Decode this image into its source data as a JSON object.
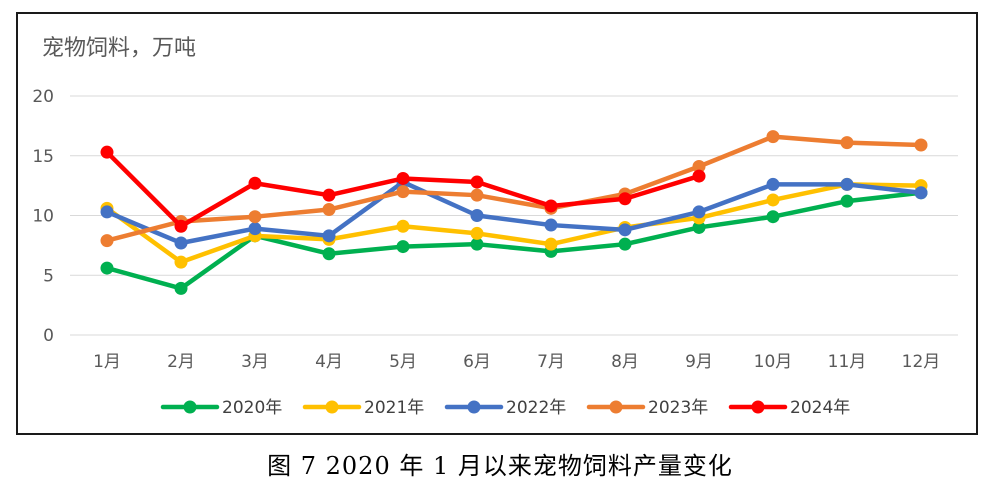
{
  "caption": "图 7 2020 年 1 月以来宠物饲料产量变化",
  "chart_data": {
    "type": "line",
    "unit_label": "宠物饲料，万吨",
    "categories": [
      "1月",
      "2月",
      "3月",
      "4月",
      "5月",
      "6月",
      "7月",
      "8月",
      "9月",
      "10月",
      "11月",
      "12月"
    ],
    "ylim": [
      0,
      20
    ],
    "yticks": [
      0,
      5,
      10,
      15,
      20
    ],
    "grid": true,
    "legend_position": "bottom",
    "series": [
      {
        "name": "2020年",
        "color": "#00b050",
        "values": [
          5.6,
          3.9,
          8.3,
          6.8,
          7.4,
          7.6,
          7.0,
          7.6,
          9.0,
          9.9,
          11.2,
          11.9
        ]
      },
      {
        "name": "2021年",
        "color": "#ffc000",
        "values": [
          10.6,
          6.1,
          8.3,
          8.0,
          9.1,
          8.5,
          7.6,
          9.0,
          9.8,
          11.3,
          12.6,
          12.5
        ]
      },
      {
        "name": "2022年",
        "color": "#4472c4",
        "values": [
          10.3,
          7.7,
          8.9,
          8.3,
          12.8,
          10.0,
          9.2,
          8.8,
          10.3,
          12.6,
          12.6,
          11.9
        ]
      },
      {
        "name": "2023年",
        "color": "#ed7d31",
        "values": [
          7.9,
          9.5,
          9.9,
          10.5,
          12.0,
          11.7,
          10.6,
          11.8,
          14.1,
          16.6,
          16.1,
          15.9
        ]
      },
      {
        "name": "2024年",
        "color": "#ff0000",
        "values": [
          15.3,
          9.1,
          12.7,
          11.7,
          13.1,
          12.8,
          10.8,
          11.4,
          13.3,
          null,
          null,
          null
        ]
      }
    ]
  }
}
